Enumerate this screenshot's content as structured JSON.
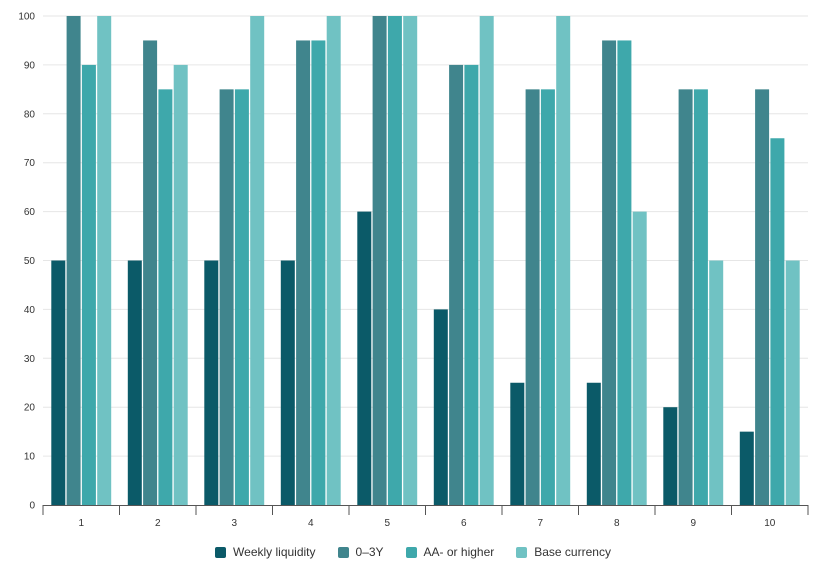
{
  "chart_data": {
    "type": "bar",
    "title": "",
    "xlabel": "",
    "ylabel": "",
    "ylim": [
      0,
      100
    ],
    "yticks": [
      0,
      10,
      20,
      30,
      40,
      50,
      60,
      70,
      80,
      90,
      100
    ],
    "categories": [
      "1",
      "2",
      "3",
      "4",
      "5",
      "6",
      "7",
      "8",
      "9",
      "10"
    ],
    "series": [
      {
        "name": "Weekly liquidity",
        "color": "#0b5a68",
        "values": [
          50,
          50,
          50,
          50,
          60,
          40,
          25,
          25,
          20,
          15
        ]
      },
      {
        "name": "0–3Y",
        "color": "#40858d",
        "values": [
          100,
          95,
          85,
          95,
          100,
          90,
          85,
          95,
          85,
          85
        ]
      },
      {
        "name": "AA- or higher",
        "color": "#3ea8ab",
        "values": [
          90,
          85,
          85,
          95,
          100,
          90,
          85,
          95,
          85,
          75
        ]
      },
      {
        "name": "Base currency",
        "color": "#70c2c3",
        "values": [
          100,
          90,
          100,
          100,
          100,
          100,
          100,
          60,
          50,
          50
        ]
      }
    ],
    "grid": true,
    "legend_position": "bottom-center"
  }
}
